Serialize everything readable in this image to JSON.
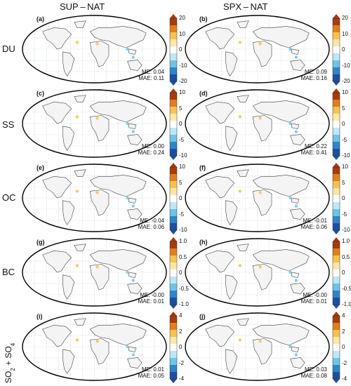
{
  "column_titles": [
    "SUP – NAT",
    "SPX – NAT"
  ],
  "row_labels": [
    "DU",
    "SS",
    "OC",
    "BC"
  ],
  "row5_label": {
    "main": "SO",
    "sub1": "2",
    "plus": " + SO",
    "sub2": "4"
  },
  "colorbar_colors": [
    "#1d4fa0",
    "#2f86c6",
    "#6ec3e8",
    "#bfe6f5",
    "#ffffff",
    "#fde7a8",
    "#f7c24f",
    "#e07f1a",
    "#a83a0c"
  ],
  "chart_data": [
    {
      "panel": "(a)",
      "row": "DU",
      "column": "SUP – NAT",
      "type": "heatmap",
      "colorbar_ticks": [
        "20",
        "10",
        "0",
        "-10",
        "-20"
      ],
      "ME": "ME: 0.04",
      "MAE": "MAE: 0.11"
    },
    {
      "panel": "(b)",
      "row": "DU",
      "column": "SPX – NAT",
      "type": "heatmap",
      "colorbar_ticks": [
        "20",
        "10",
        "0",
        "-10",
        "-20"
      ],
      "ME": "ME: 0.09",
      "MAE": "MAE: 0.16"
    },
    {
      "panel": "(c)",
      "row": "SS",
      "column": "SUP – NAT",
      "type": "heatmap",
      "colorbar_ticks": [
        "10",
        "5",
        "0",
        "-5",
        "-10"
      ],
      "ME": "ME: 0.00",
      "MAE": "MAE: 0.24"
    },
    {
      "panel": "(d)",
      "row": "SS",
      "column": "SPX – NAT",
      "type": "heatmap",
      "colorbar_ticks": [
        "10",
        "5",
        "0",
        "-5",
        "-10"
      ],
      "ME": "ME: 0.22",
      "MAE": "MAE: 0.41"
    },
    {
      "panel": "(e)",
      "row": "OC",
      "column": "SUP – NAT",
      "type": "heatmap",
      "colorbar_ticks": [
        "10",
        "5",
        "0",
        "-5",
        "-10"
      ],
      "ME": "ME: -0.04",
      "MAE": "MAE: 0.06"
    },
    {
      "panel": "(f)",
      "row": "OC",
      "column": "SPX – NAT",
      "type": "heatmap",
      "colorbar_ticks": [
        "10",
        "5",
        "0",
        "-5",
        "-10"
      ],
      "ME": "ME: -0.01",
      "MAE": "MAE: 0.06"
    },
    {
      "panel": "(g)",
      "row": "BC",
      "column": "SUP – NAT",
      "type": "heatmap",
      "colorbar_ticks": [
        "1.0",
        "0.5",
        "0",
        "-0.5",
        "-1.0"
      ],
      "ME": "ME: -0.00",
      "MAE": "MAE: 0.01"
    },
    {
      "panel": "(h)",
      "row": "BC",
      "column": "SPX – NAT",
      "type": "heatmap",
      "colorbar_ticks": [
        "1.0",
        "0.5",
        "0",
        "-0.5",
        "-1.0"
      ],
      "ME": "ME: -0.00",
      "MAE": "MAE: 0.01"
    },
    {
      "panel": "(i)",
      "row": "SO2 + SO4",
      "column": "SUP – NAT",
      "type": "heatmap",
      "colorbar_ticks": [
        "4",
        "2",
        "0",
        "-2",
        "-4"
      ],
      "ME": "ME: 0.01",
      "MAE": "MAE: 0.05"
    },
    {
      "panel": "(j)",
      "row": "SO2 + SO4",
      "column": "SPX – NAT",
      "type": "heatmap",
      "colorbar_ticks": [
        "4",
        "2",
        "0",
        "-2",
        "-4"
      ],
      "ME": "ME: 0.03",
      "MAE": "MAE: 0.08"
    }
  ]
}
